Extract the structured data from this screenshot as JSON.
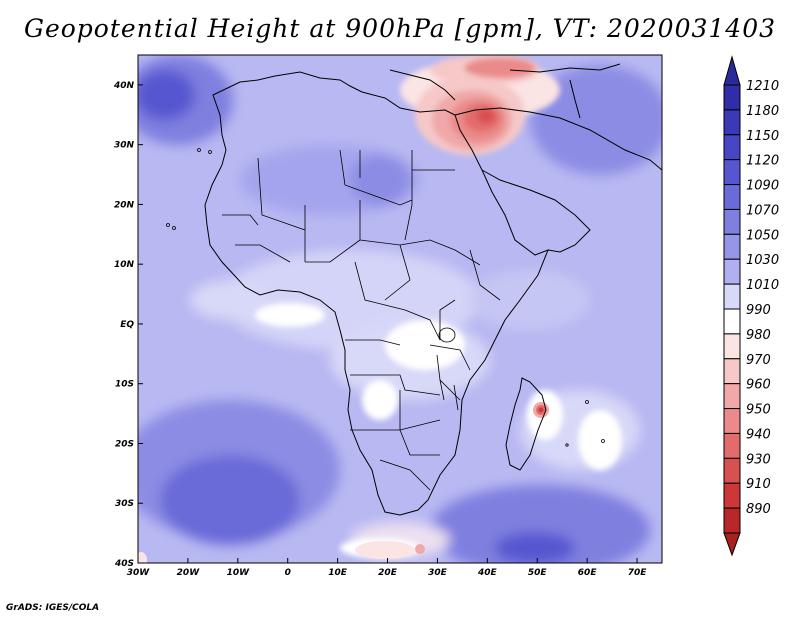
{
  "title": "Geopotential Height at 900hPa [gpm], VT: 2020031403",
  "credit": "GrADS: IGES/COLA",
  "map": {
    "lon_range": [
      -30,
      75
    ],
    "lat_range": [
      -40,
      45
    ],
    "lon_ticks": [
      {
        "value": -30,
        "label": "30W"
      },
      {
        "value": -20,
        "label": "20W"
      },
      {
        "value": -10,
        "label": "10W"
      },
      {
        "value": 0,
        "label": "0"
      },
      {
        "value": 10,
        "label": "10E"
      },
      {
        "value": 20,
        "label": "20E"
      },
      {
        "value": 30,
        "label": "30E"
      },
      {
        "value": 40,
        "label": "40E"
      },
      {
        "value": 50,
        "label": "50E"
      },
      {
        "value": 60,
        "label": "60E"
      },
      {
        "value": 70,
        "label": "70E"
      }
    ],
    "lat_ticks": [
      {
        "value": 40,
        "label": "40N"
      },
      {
        "value": 30,
        "label": "30N"
      },
      {
        "value": 20,
        "label": "20N"
      },
      {
        "value": 10,
        "label": "10N"
      },
      {
        "value": 0,
        "label": "EQ"
      },
      {
        "value": -10,
        "label": "10S"
      },
      {
        "value": -20,
        "label": "20S"
      },
      {
        "value": -30,
        "label": "30S"
      },
      {
        "value": -40,
        "label": "40S"
      }
    ]
  },
  "colorbar": {
    "entries": [
      {
        "label": "1210",
        "color": "#2f2ea8"
      },
      {
        "label": "1180",
        "color": "#3a3ab8"
      },
      {
        "label": "1150",
        "color": "#4646c6"
      },
      {
        "label": "1120",
        "color": "#5656d0"
      },
      {
        "label": "1090",
        "color": "#6a6ad8"
      },
      {
        "label": "1070",
        "color": "#7f7fe0"
      },
      {
        "label": "1050",
        "color": "#9696e8"
      },
      {
        "label": "1030",
        "color": "#b0b0f0"
      },
      {
        "label": "1010",
        "color": "#d8d8f8"
      },
      {
        "label": "990",
        "color": "#ffffff"
      },
      {
        "label": "980",
        "color": "#fbe4e4"
      },
      {
        "label": "970",
        "color": "#f6c8c8"
      },
      {
        "label": "960",
        "color": "#f0a8a8"
      },
      {
        "label": "950",
        "color": "#ea8a8a"
      },
      {
        "label": "940",
        "color": "#e26c6c"
      },
      {
        "label": "930",
        "color": "#d85050"
      },
      {
        "label": "910",
        "color": "#cc3838"
      },
      {
        "label": "890",
        "color": "#b82828"
      }
    ],
    "top_arrow_color": "#2a2a9a",
    "bottom_arrow_color": "#a82020"
  }
}
